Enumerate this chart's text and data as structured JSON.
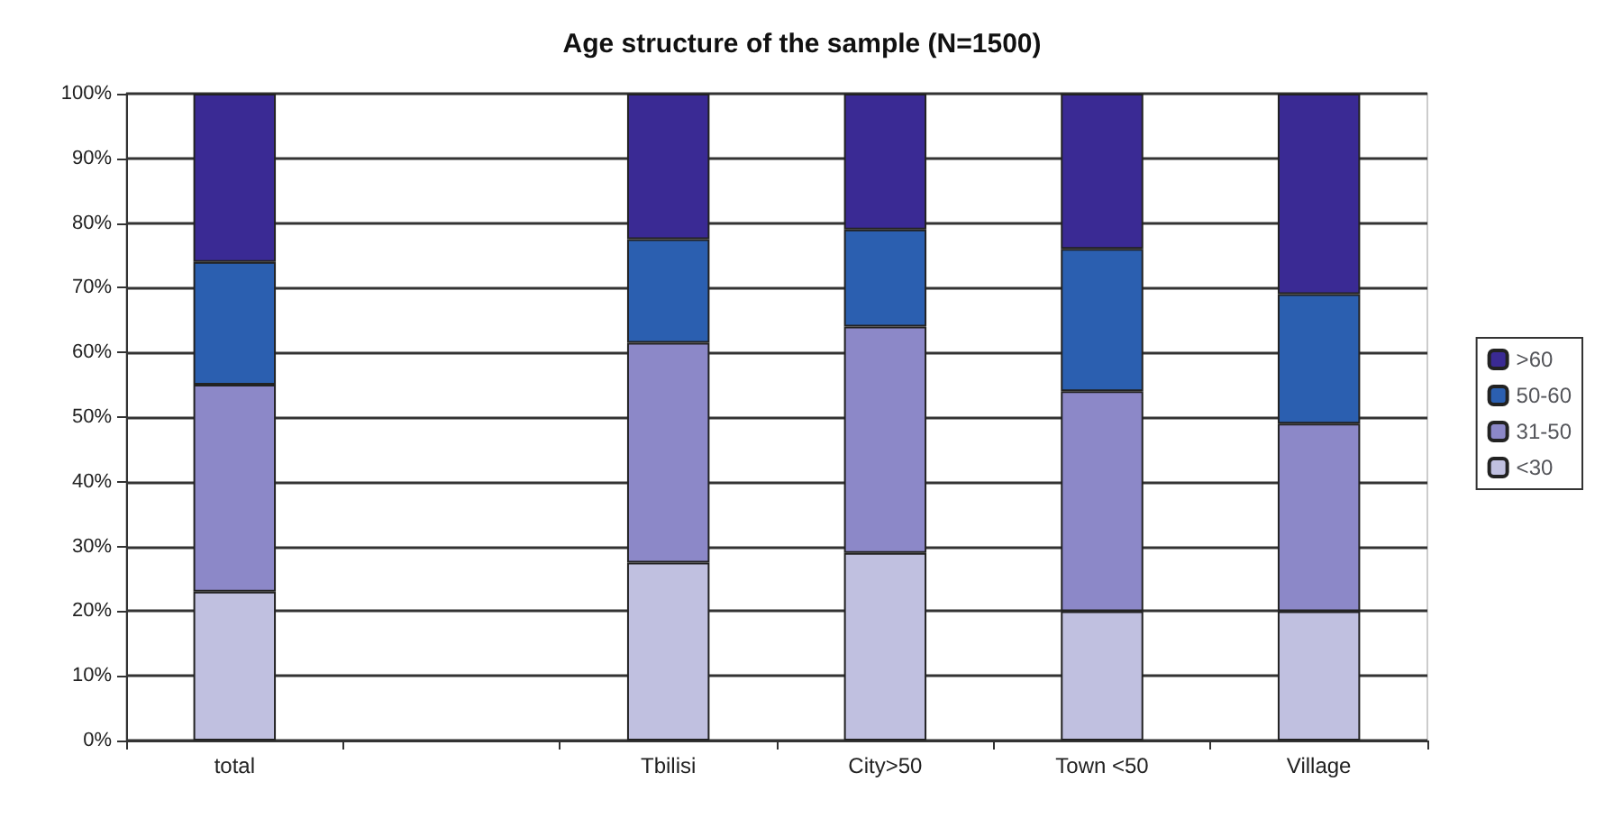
{
  "chart_data": {
    "type": "bar",
    "title": "Age structure of the sample (N=1500)",
    "stacked": true,
    "categories": [
      "total",
      null,
      "Tbilisi",
      "City>50",
      "Town <50",
      "Village"
    ],
    "series": [
      {
        "name": "<30",
        "color": "#c0c0e0",
        "values": [
          23,
          null,
          27.5,
          29,
          20,
          20
        ]
      },
      {
        "name": "31-50",
        "color": "#8c88c8",
        "values": [
          32,
          null,
          34,
          35,
          34,
          29
        ]
      },
      {
        "name": "50-60",
        "color": "#2b5fb0",
        "values": [
          19,
          null,
          16,
          15,
          22,
          20
        ]
      },
      {
        "name": ">60",
        "color": "#3a2a94",
        "values": [
          26,
          null,
          22.5,
          21,
          24,
          31
        ]
      }
    ],
    "ylim": [
      0,
      100
    ],
    "yticks": [
      {
        "value": 0,
        "label": "0%"
      },
      {
        "value": 10,
        "label": "10%"
      },
      {
        "value": 20,
        "label": "20%"
      },
      {
        "value": 30,
        "label": "30%"
      },
      {
        "value": 40,
        "label": "40%"
      },
      {
        "value": 50,
        "label": "50%"
      },
      {
        "value": 60,
        "label": "60%"
      },
      {
        "value": 70,
        "label": "70%"
      },
      {
        "value": 80,
        "label": "80%"
      },
      {
        "value": 90,
        "label": "90%"
      },
      {
        "value": 100,
        "label": "100%"
      }
    ],
    "grid": "y",
    "legend": "right"
  }
}
